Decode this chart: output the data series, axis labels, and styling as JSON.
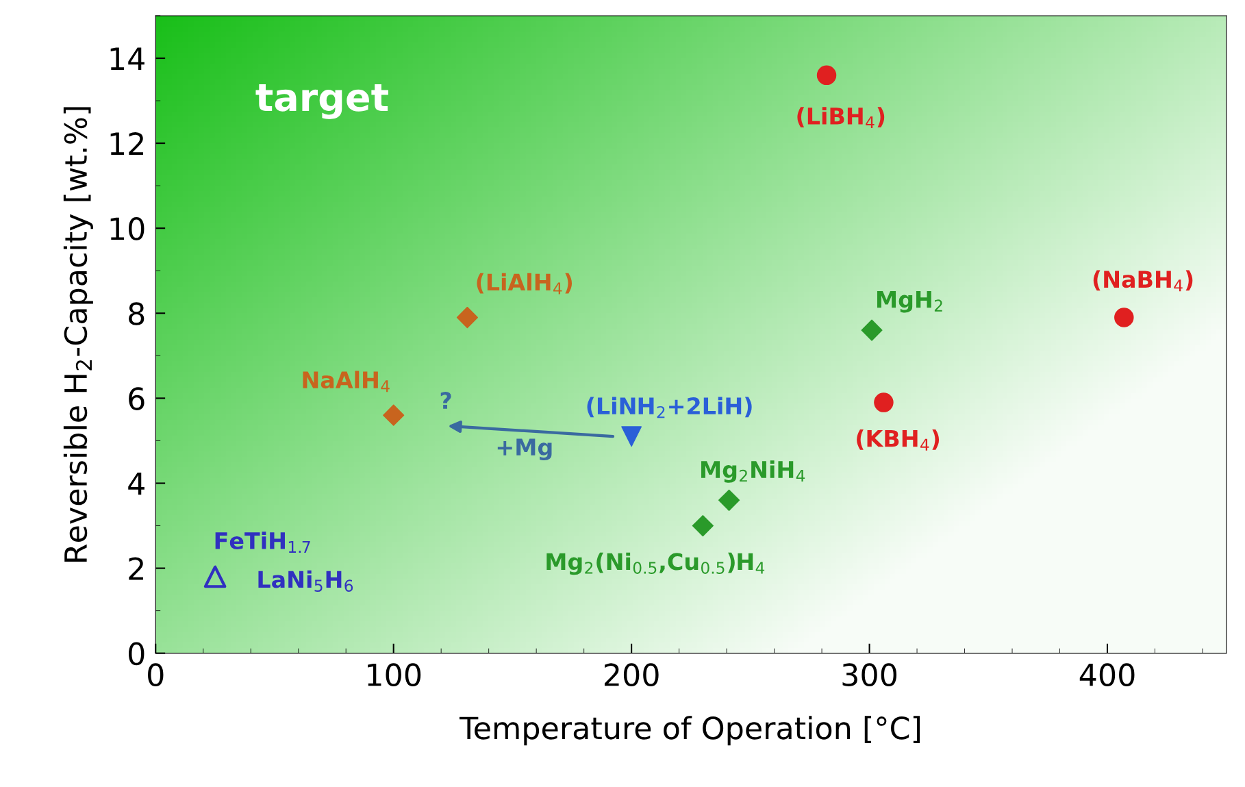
{
  "chart_data": {
    "type": "scatter",
    "xlabel": "Temperature of Operation [°C]",
    "ylabel": "Reversible H$_{2}$-Capacity [wt.%]",
    "xlim": [
      0,
      450
    ],
    "ylim": [
      0,
      15
    ],
    "xticks": [
      0,
      100,
      200,
      300,
      400
    ],
    "yticks": [
      0,
      2,
      4,
      6,
      8,
      10,
      12,
      14
    ],
    "grid": false,
    "legend": false,
    "series": [
      {
        "color": "#e02020",
        "marker": "circle",
        "x": [
          282,
          407,
          306
        ],
        "values": [
          13.6,
          7.9,
          5.9
        ]
      },
      {
        "color": "#c8641e",
        "marker": "diamond",
        "x": [
          131,
          100
        ],
        "values": [
          7.9,
          5.6
        ]
      },
      {
        "color": "#2a9a2a",
        "marker": "diamond",
        "x": [
          301,
          241,
          230
        ],
        "values": [
          7.6,
          3.6,
          3.0
        ]
      },
      {
        "color": "#2a5fd8",
        "marker": "triangle_down",
        "x": [
          200
        ],
        "values": [
          5.1
        ]
      },
      {
        "color": "#3030c0",
        "marker": "triangle_hollow",
        "x": [
          25
        ],
        "values": [
          1.8
        ]
      }
    ],
    "annotations": [
      {
        "text": "(LiBH$_{4}$)",
        "x": 282,
        "y": 13.6
      },
      {
        "text": "(NaBH$_{4}$)",
        "x": 407,
        "y": 7.9
      },
      {
        "text": "(KBH$_{4}$)",
        "x": 306,
        "y": 5.9
      },
      {
        "text": "(LiAlH$_{4}$)",
        "x": 131,
        "y": 7.9
      },
      {
        "text": "NaAlH$_{4}$",
        "x": 100,
        "y": 5.6
      },
      {
        "text": "MgH$_{2}$",
        "x": 301,
        "y": 7.6
      },
      {
        "text": "Mg$_{2}$NiH$_{4}$",
        "x": 241,
        "y": 3.6
      },
      {
        "text": "Mg$_{2}$(Ni$_{0.5}$,Cu$_{0.5}$)H$_{4}$",
        "x": 230,
        "y": 3.0
      },
      {
        "text": "(LiNH$_{2}$+2LiH)",
        "x": 200,
        "y": 5.1
      },
      {
        "text": "LaNi$_{5}$H$_{6}$",
        "x": 25,
        "y": 1.8
      },
      "target",
      "FeTiH$_{1.7}$",
      "?",
      "+Mg"
    ]
  }
}
